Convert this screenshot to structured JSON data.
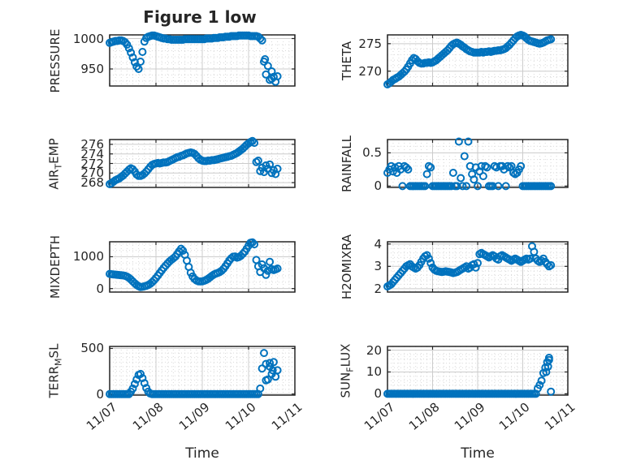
{
  "chart_data": {
    "type": "scatter",
    "title": "Figure 1 low",
    "xlabel": "Time",
    "marker": "open-circle",
    "marker_color": "#0072BD",
    "grid": "major-solid-minor-dotted",
    "xlim": [
      0,
      4
    ],
    "xticks": [
      0,
      1,
      2,
      3,
      4
    ],
    "x_tick_labels": [
      "11/07",
      "11/08",
      "11/09",
      "11/10",
      "11/11"
    ],
    "x_minor_per_day": 8,
    "x_unit": "days since 11/07",
    "x_days": [
      0,
      0.042,
      0.083,
      0.125,
      0.167,
      0.208,
      0.25,
      0.292,
      0.333,
      0.375,
      0.417,
      0.458,
      0.5,
      0.542,
      0.583,
      0.625,
      0.667,
      0.708,
      0.75,
      0.792,
      0.833,
      0.875,
      0.917,
      0.958,
      1,
      1.042,
      1.083,
      1.125,
      1.167,
      1.208,
      1.25,
      1.292,
      1.333,
      1.375,
      1.417,
      1.458,
      1.5,
      1.542,
      1.583,
      1.625,
      1.667,
      1.708,
      1.75,
      1.792,
      1.833,
      1.875,
      1.917,
      1.958,
      2,
      2.042,
      2.083,
      2.125,
      2.167,
      2.208,
      2.25,
      2.292,
      2.333,
      2.375,
      2.417,
      2.458,
      2.5,
      2.542,
      2.583,
      2.625,
      2.667,
      2.708,
      2.75,
      2.792,
      2.833,
      2.875,
      2.917,
      2.958,
      3,
      3.042,
      3.083,
      3.125,
      3.167,
      3.208,
      3.25,
      3.292,
      3.333,
      3.375,
      3.417,
      3.458,
      3.5,
      3.542,
      3.583,
      3.625
    ],
    "subplots": [
      {
        "id": "pressure",
        "ylabel": "PRESSURE",
        "ylabel_parts": [
          {
            "text": "PRESSURE",
            "sub": false
          }
        ],
        "ylim": [
          922,
          1006
        ],
        "yticks": [
          950,
          1000
        ],
        "ytick_labels": [
          "950",
          "1000"
        ],
        "y_minor_div": 5,
        "y": [
          993,
          994,
          995,
          996,
          996,
          997,
          997,
          996,
          994,
          990,
          984,
          977,
          969,
          961,
          954,
          950,
          962,
          978,
          995,
          1001,
          1003,
          1004,
          1005,
          1005,
          1004,
          1003,
          1002,
          1001,
          1000,
          1000,
          999,
          999,
          998,
          998,
          998,
          998,
          998,
          998,
          998,
          999,
          999,
          999,
          999,
          999,
          999,
          999,
          999,
          999,
          999,
          999,
          1000,
          1000,
          1000,
          1000,
          1001,
          1001,
          1001,
          1002,
          1002,
          1002,
          1003,
          1003,
          1003,
          1004,
          1004,
          1004,
          1004,
          1005,
          1005,
          1005,
          1005,
          1005,
          1005,
          1004,
          1004,
          1004,
          1004,
          1003,
          1000,
          997,
          962,
          941,
          955,
          932,
          946,
          937,
          929,
          938
        ],
        "extra_x": [
          3.354,
          3.5
        ],
        "extra_y": [
          966,
          934
        ]
      },
      {
        "id": "theta",
        "ylabel": "THETA",
        "ylabel_parts": [
          {
            "text": "THETA",
            "sub": false
          }
        ],
        "ylim": [
          267.3,
          276.6
        ],
        "yticks": [
          270,
          275
        ],
        "ytick_labels": [
          "270",
          "275"
        ],
        "y_minor_div": 5,
        "y": [
          267.6,
          267.8,
          268.1,
          268.4,
          268.6,
          268.8,
          269,
          269.3,
          269.6,
          269.9,
          270.3,
          270.8,
          271.4,
          272,
          272.4,
          272.2,
          271.8,
          271.5,
          271.4,
          271.4,
          271.5,
          271.5,
          271.6,
          271.5,
          271.6,
          271.8,
          272,
          272.3,
          272.6,
          272.9,
          273.2,
          273.5,
          273.8,
          274.2,
          274.6,
          274.9,
          275.1,
          275.2,
          275,
          274.8,
          274.5,
          274.3,
          274,
          273.8,
          273.6,
          273.5,
          273.4,
          273.4,
          273.4,
          273.4,
          273.5,
          273.4,
          273.5,
          273.5,
          273.6,
          273.5,
          273.6,
          273.7,
          273.7,
          273.8,
          273.8,
          273.9,
          274,
          274.2,
          274.5,
          274.8,
          275.2,
          275.6,
          276,
          276.3,
          276.5,
          276.6,
          276.5,
          276.3,
          276,
          275.7,
          275.5,
          275.4,
          275.3,
          275.2,
          275.1,
          275,
          275.1,
          275.2,
          275.4,
          275.6,
          275.7,
          275.8
        ]
      },
      {
        "id": "airtemp",
        "ylabel": "AIR_TEMP",
        "ylabel_parts": [
          {
            "text": "AIR",
            "sub": false
          },
          {
            "text": "T",
            "sub": true
          },
          {
            "text": "EMP",
            "sub": false
          }
        ],
        "ylim": [
          267,
          277
        ],
        "yticks": [
          268,
          270,
          272,
          274,
          276
        ],
        "ytick_labels": [
          "268",
          "270",
          "272",
          "274",
          "276"
        ],
        "y_minor_div": 2,
        "y": [
          267.7,
          267.9,
          268.2,
          268.5,
          268.7,
          268.9,
          269.2,
          269.5,
          269.9,
          270.3,
          270.7,
          271,
          270.8,
          270.3,
          269.7,
          269.4,
          269.4,
          269.6,
          269.9,
          270.3,
          270.8,
          271.3,
          271.7,
          271.9,
          272,
          272.1,
          272,
          272.1,
          272.2,
          272.2,
          272.3,
          272.5,
          272.7,
          272.9,
          273.1,
          273.3,
          273.4,
          273.6,
          273.7,
          273.9,
          274.1,
          274.2,
          274.3,
          274.2,
          274,
          273.6,
          273.1,
          272.8,
          272.6,
          272.5,
          272.5,
          272.6,
          272.6,
          272.7,
          272.7,
          272.8,
          272.9,
          273,
          273.1,
          273.2,
          273.3,
          273.4,
          273.5,
          273.6,
          273.8,
          274,
          274.2,
          274.5,
          274.8,
          275.1,
          275.5,
          275.9,
          276.2,
          276.5,
          276.7,
          276.3,
          272.3,
          272.6,
          270.4,
          271.1,
          270.2,
          271.6,
          270.9,
          271.8,
          270,
          270.6,
          269.8,
          270.9
        ]
      },
      {
        "id": "rainfall",
        "ylabel": "RAINFALL",
        "ylabel_parts": [
          {
            "text": "RAINFALL",
            "sub": false
          }
        ],
        "ylim": [
          -0.02,
          0.7
        ],
        "yticks": [
          0,
          0.5
        ],
        "ytick_labels": [
          "0",
          "0.5"
        ],
        "y_minor_div": 5,
        "y": [
          0.2,
          0.25,
          0.3,
          0.22,
          0.28,
          0.2,
          0.3,
          0.25,
          0,
          0.3,
          0.28,
          0.25,
          0,
          0,
          0,
          0,
          0,
          0,
          0,
          0,
          0,
          0.18,
          0.3,
          0.28,
          0,
          0,
          0,
          0,
          0,
          0,
          0,
          0,
          0,
          0,
          0,
          0.2,
          0,
          0,
          0.67,
          0.12,
          0,
          0.45,
          0,
          0.67,
          0.3,
          0.18,
          0.1,
          0.28,
          0,
          0.22,
          0.3,
          0.15,
          0.3,
          0.28,
          0,
          0,
          0,
          0.3,
          0.28,
          0,
          0.3,
          0.3,
          0.25,
          0,
          0.3,
          0.28,
          0.3,
          0.2,
          0.18,
          0.2,
          0.25,
          0.3,
          0,
          0,
          0,
          0,
          0,
          0,
          0,
          0,
          0,
          0,
          0,
          0,
          0,
          0,
          0,
          0
        ]
      },
      {
        "id": "mixdepth",
        "ylabel": "MIXDEPTH",
        "ylabel_parts": [
          {
            "text": "MIXDEPTH",
            "sub": false
          }
        ],
        "ylim": [
          -110,
          1470
        ],
        "yticks": [
          0,
          1000
        ],
        "ytick_labels": [
          "0",
          "1000"
        ],
        "y_minor_div": 5,
        "y": [
          460,
          450,
          445,
          438,
          430,
          424,
          418,
          412,
          400,
          375,
          335,
          285,
          225,
          165,
          115,
          75,
          50,
          55,
          70,
          90,
          115,
          150,
          200,
          260,
          330,
          410,
          490,
          570,
          650,
          720,
          790,
          850,
          905,
          950,
          1000,
          1080,
          1170,
          1250,
          1190,
          1060,
          880,
          680,
          500,
          380,
          300,
          255,
          230,
          225,
          230,
          245,
          270,
          305,
          350,
          400,
          440,
          470,
          490,
          520,
          560,
          620,
          700,
          790,
          880,
          950,
          1000,
          1010,
          970,
          990,
          1030,
          1090,
          1160,
          1250,
          1350,
          1440,
          1450,
          1390,
          900,
          700,
          520,
          760,
          640,
          430,
          560,
          840,
          610,
          580,
          600,
          630
        ]
      },
      {
        "id": "h2omixra",
        "ylabel": "H2OMIXRA",
        "ylabel_parts": [
          {
            "text": "H2OMIXRA",
            "sub": false
          }
        ],
        "ylim": [
          1.85,
          4.1
        ],
        "yticks": [
          2,
          3,
          4
        ],
        "ytick_labels": [
          "2",
          "3",
          "4"
        ],
        "y_minor_div": 5,
        "y": [
          2.1,
          2.15,
          2.2,
          2.3,
          2.4,
          2.5,
          2.6,
          2.7,
          2.8,
          2.9,
          3,
          3.05,
          3.1,
          3,
          2.95,
          2.9,
          2.95,
          3.05,
          3.2,
          3.35,
          3.45,
          3.5,
          3.35,
          3.15,
          2.95,
          2.85,
          2.8,
          2.78,
          2.76,
          2.75,
          2.76,
          2.78,
          2.76,
          2.75,
          2.73,
          2.7,
          2.72,
          2.75,
          2.8,
          2.85,
          2.9,
          2.95,
          3,
          2.9,
          2.95,
          3.05,
          3.1,
          2.95,
          3.15,
          3.55,
          3.6,
          3.55,
          3.5,
          3.45,
          3.4,
          3.45,
          3.5,
          3.45,
          3.35,
          3.3,
          3.45,
          3.5,
          3.45,
          3.4,
          3.35,
          3.3,
          3.25,
          3.3,
          3.35,
          3.3,
          3.25,
          3.2,
          3.25,
          3.3,
          3.35,
          3.3,
          3.35,
          3.9,
          3.65,
          3.35,
          3.25,
          3.2,
          3.25,
          3.35,
          3.2,
          3.1,
          3,
          3.05
        ]
      },
      {
        "id": "terrmsl",
        "ylabel": "TERR_MSL",
        "ylabel_parts": [
          {
            "text": "TERR",
            "sub": false
          },
          {
            "text": "M",
            "sub": true
          },
          {
            "text": "SL",
            "sub": false
          }
        ],
        "ylim": [
          -12,
          522
        ],
        "yticks": [
          0,
          500
        ],
        "ytick_labels": [
          "0",
          "500"
        ],
        "y_minor_div": 10,
        "y": [
          0,
          0,
          0,
          0,
          0,
          0,
          0,
          0,
          0,
          0,
          0,
          25,
          60,
          110,
          160,
          210,
          220,
          175,
          120,
          65,
          25,
          5,
          0,
          0,
          0,
          0,
          0,
          0,
          0,
          0,
          0,
          0,
          0,
          0,
          0,
          0,
          0,
          0,
          0,
          0,
          0,
          0,
          0,
          0,
          0,
          0,
          0,
          0,
          0,
          0,
          0,
          0,
          0,
          0,
          0,
          0,
          0,
          0,
          0,
          0,
          0,
          0,
          0,
          0,
          0,
          0,
          0,
          0,
          0,
          0,
          0,
          0,
          0,
          0,
          0,
          0,
          0,
          0,
          60,
          280,
          450,
          330,
          160,
          300,
          220,
          350,
          190,
          260
        ],
        "extra_x": [
          3.375,
          3.458,
          3.521
        ],
        "extra_y": [
          150,
          340,
          260
        ]
      },
      {
        "id": "sunflux",
        "ylabel": "SUN_FLUX",
        "ylabel_parts": [
          {
            "text": "SUN",
            "sub": false
          },
          {
            "text": "F",
            "sub": true
          },
          {
            "text": "LUX",
            "sub": false
          }
        ],
        "ylim": [
          -0.6,
          21.7
        ],
        "yticks": [
          0,
          10,
          20
        ],
        "ytick_labels": [
          "0",
          "10",
          "20"
        ],
        "y_minor_div": 5,
        "y": [
          0,
          0,
          0,
          0,
          0,
          0,
          0,
          0,
          0,
          0,
          0,
          0,
          0,
          0,
          0,
          0,
          0,
          0,
          0,
          0,
          0,
          0,
          0,
          0,
          0,
          0,
          0,
          0,
          0,
          0,
          0,
          0,
          0,
          0,
          0,
          0,
          0,
          0,
          0,
          0,
          0,
          0,
          0,
          0,
          0,
          0,
          0,
          0,
          0,
          0,
          0,
          0,
          0,
          0,
          0,
          0,
          0,
          0,
          0,
          0,
          0,
          0,
          0,
          0,
          0,
          0,
          0,
          0,
          0,
          0,
          0,
          0,
          0,
          0,
          0,
          0,
          0,
          0,
          0,
          0,
          2.5,
          4,
          6,
          9.5,
          12,
          14.5,
          16.5,
          1
        ],
        "extra_x": [
          3.521,
          3.563,
          3.583
        ],
        "extra_y": [
          10,
          12.5,
          15.5
        ]
      }
    ]
  },
  "colors": {
    "marker": "#0072BD",
    "axes": "#262626",
    "grid_major": "#cccccc",
    "grid_minor": "#d9d9d9",
    "background": "#ffffff"
  }
}
